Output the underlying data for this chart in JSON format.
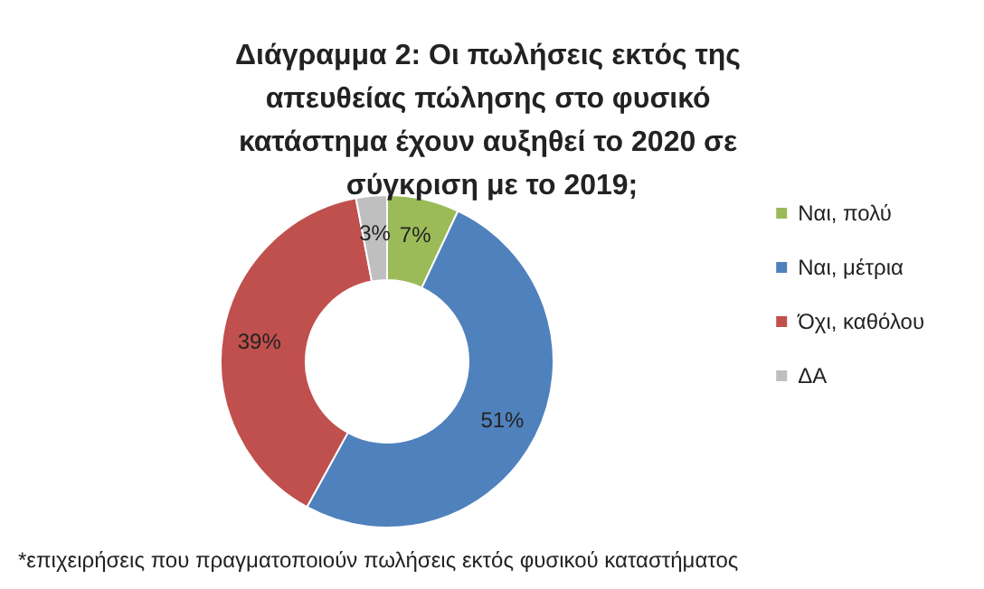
{
  "chart_data": {
    "type": "donut",
    "title": "Διάγραμμα 2: Οι πωλήσεις εκτός της απευθείας πώλησης στο φυσικό κατάστημα έχουν αυξηθεί το 2020 σε σύγκριση με το 2019;",
    "categories": [
      "Ναι, πολύ",
      "Ναι, μέτρια",
      "Όχι, καθόλου",
      "ΔΑ"
    ],
    "values": [
      7,
      51,
      39,
      3
    ],
    "colors": [
      "#9bbb59",
      "#4f81bd",
      "#c0504d",
      "#bfbfbf"
    ],
    "value_labels": [
      "7%",
      "51%",
      "39%",
      "3%"
    ],
    "legend": "right",
    "annotations": [
      "*επιχειρήσεις που πραγματοποιούν πωλήσεις εκτός φυσικού καταστήματος"
    ]
  }
}
